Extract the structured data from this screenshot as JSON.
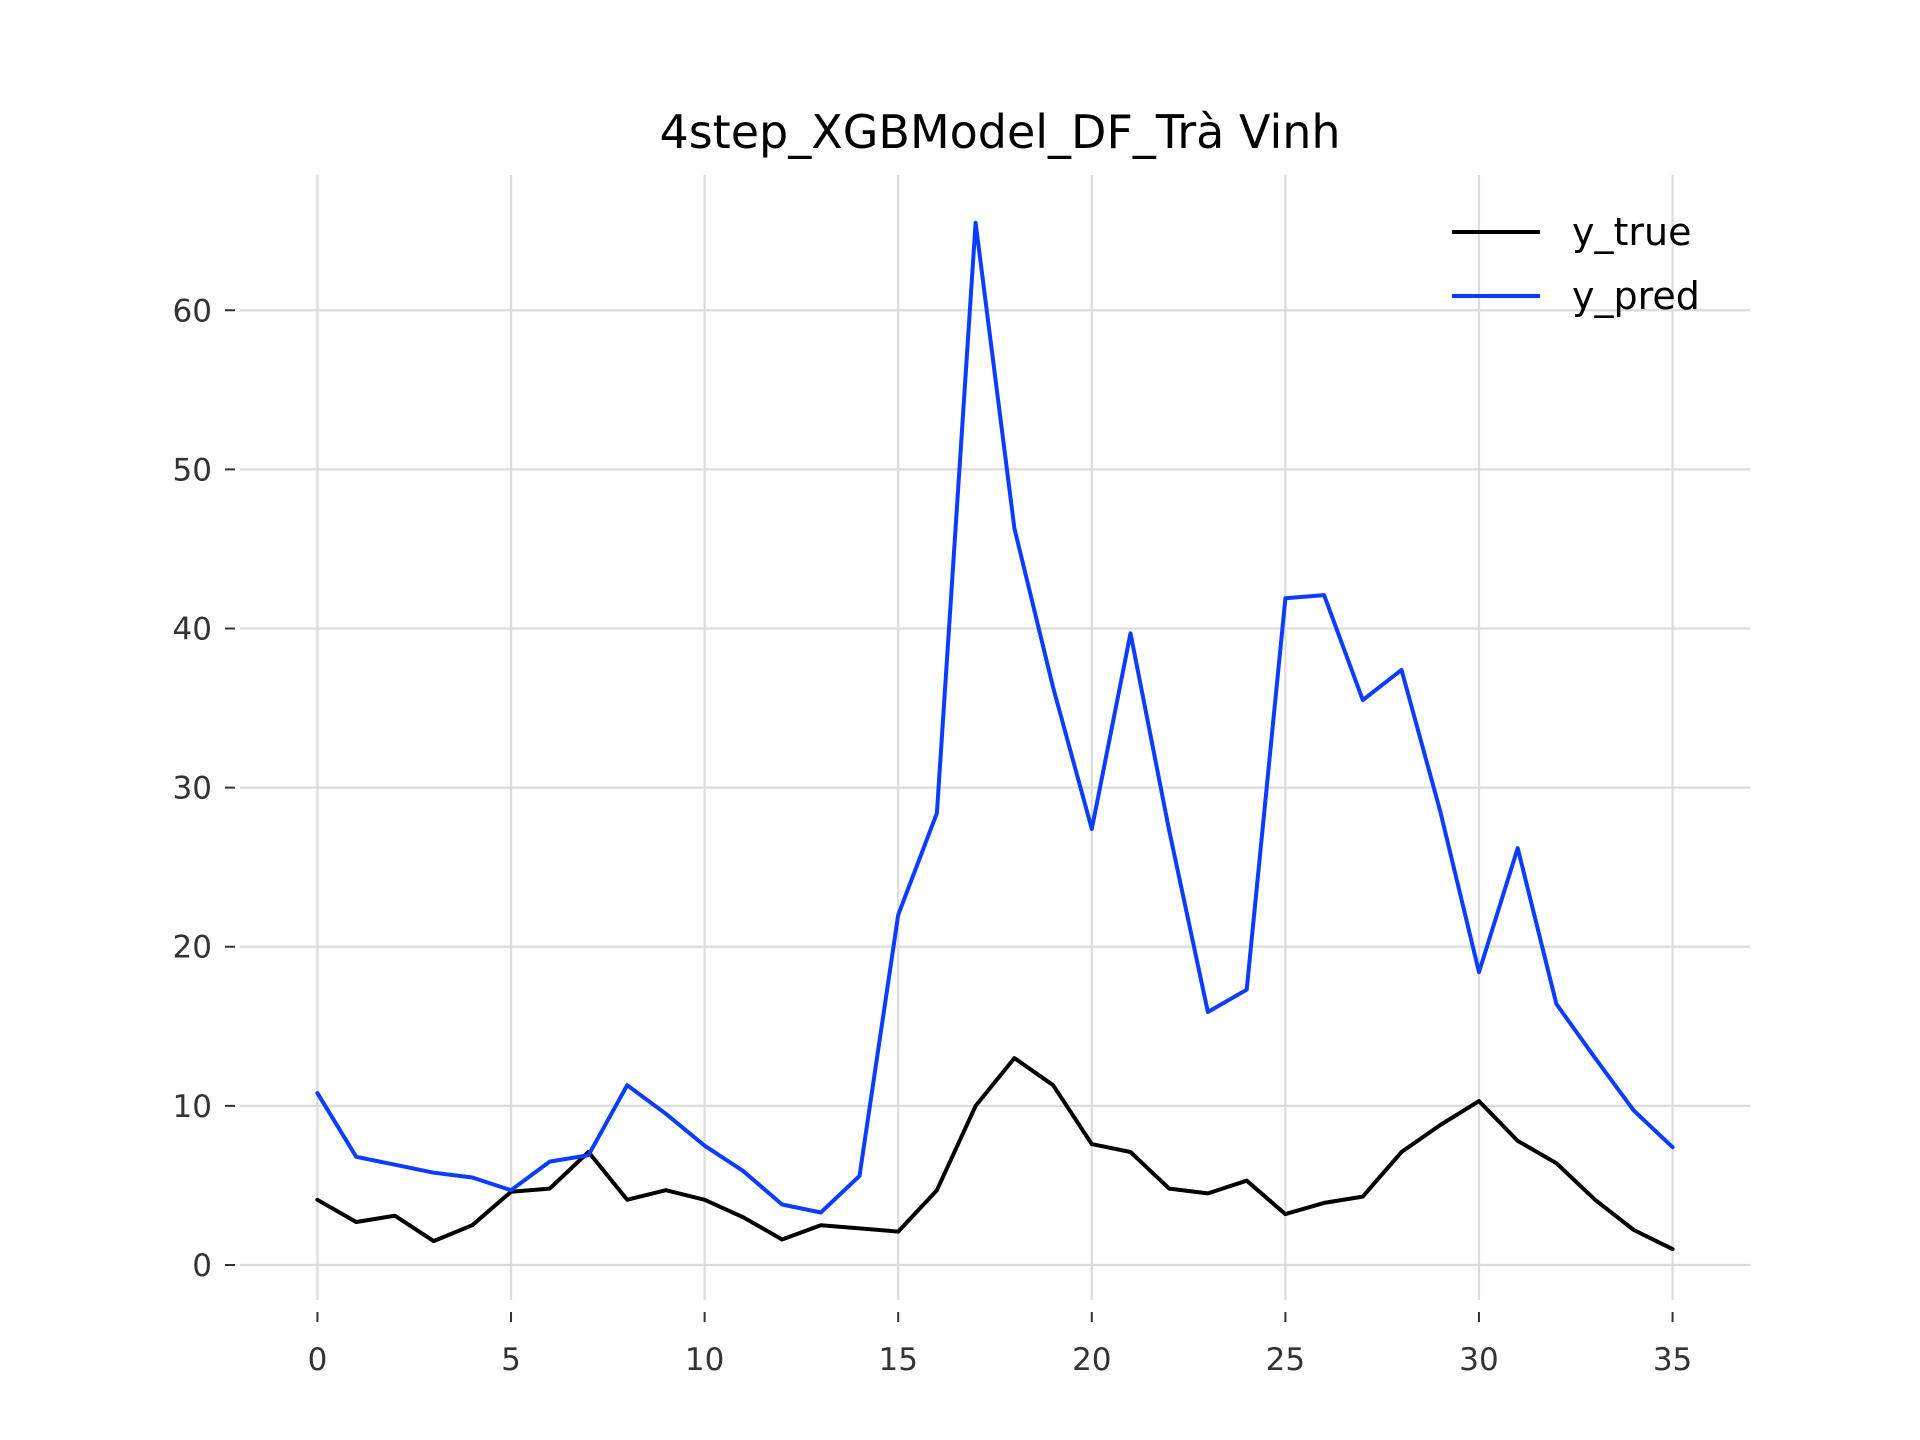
{
  "chart_data": {
    "type": "line",
    "title": "4step_XGBModel_DF_Trà Vinh",
    "xlabel": "",
    "ylabel": "",
    "xlim": [
      -2,
      37
    ],
    "ylim": [
      -2.2,
      68.5
    ],
    "xticks": [
      0,
      5,
      10,
      15,
      20,
      25,
      30,
      35
    ],
    "yticks": [
      0,
      10,
      20,
      30,
      40,
      50,
      60
    ],
    "grid": true,
    "legend_position": "top-right",
    "x": [
      0,
      1,
      2,
      3,
      4,
      5,
      6,
      7,
      8,
      9,
      10,
      11,
      12,
      13,
      14,
      15,
      16,
      17,
      18,
      19,
      20,
      21,
      22,
      23,
      24,
      25,
      26,
      27,
      28,
      29,
      30,
      31,
      32,
      33,
      34,
      35
    ],
    "series": [
      {
        "name": "y_true",
        "color": "#000000",
        "values": [
          4.1,
          2.7,
          3.1,
          1.5,
          2.5,
          4.6,
          4.8,
          7.1,
          4.1,
          4.7,
          4.1,
          3.0,
          1.6,
          2.5,
          2.3,
          2.1,
          4.7,
          10.0,
          13.0,
          11.3,
          7.6,
          7.1,
          4.8,
          4.5,
          5.3,
          3.2,
          3.9,
          4.3,
          7.1,
          8.8,
          10.3,
          7.8,
          6.4,
          4.1,
          2.2,
          1.0
        ]
      },
      {
        "name": "y_pred",
        "color": "#0a3dff",
        "values": [
          10.8,
          6.8,
          6.3,
          5.8,
          5.5,
          4.7,
          6.5,
          6.9,
          11.3,
          9.5,
          7.5,
          5.9,
          3.8,
          3.3,
          5.6,
          22.0,
          28.4,
          65.5,
          46.3,
          36.3,
          27.4,
          39.7,
          27.3,
          15.9,
          17.3,
          41.9,
          42.1,
          35.5,
          37.4,
          28.5,
          18.4,
          26.2,
          16.4,
          13.0,
          9.7,
          7.4
        ]
      }
    ]
  }
}
